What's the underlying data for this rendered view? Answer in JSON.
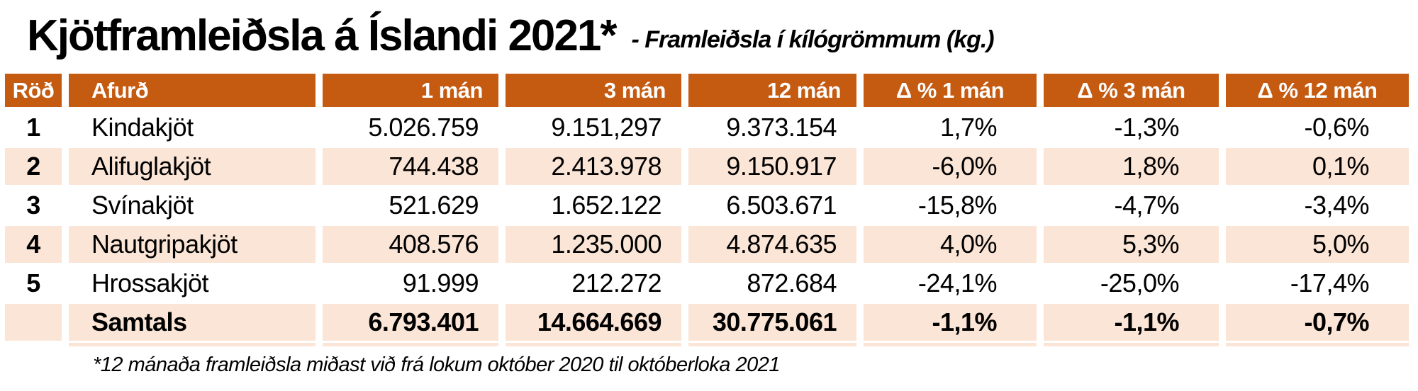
{
  "title": "Kjötframleiðsla á Íslandi 2021*",
  "subtitle": "- Framleiðsla í kílógrömmum (kg.)",
  "footnote": "*12 mánaða framleiðsla miðast við frá lokum október 2020 til októberloka 2021",
  "colors": {
    "header_bg": "#C55A11",
    "band_bg": "#FBE5D6",
    "header_text": "#FFFFFF",
    "body_text": "#000000"
  },
  "chart_data": {
    "type": "table",
    "title": "Kjötframleiðsla á Íslandi 2021*",
    "subtitle": "- Framleiðsla í kílógrömmum (kg.)",
    "columns": [
      "Röð",
      "Afurð",
      "1 mán",
      "3 mán",
      "12 mán",
      "Δ % 1 mán",
      "Δ % 3 mán",
      "Δ % 12 mán"
    ],
    "rows": [
      [
        "1",
        "Kindakjöt",
        "5.026.759",
        "9.151,297",
        "9.373.154",
        "1,7%",
        "-1,3%",
        "-0,6%"
      ],
      [
        "2",
        "Alifuglakjöt",
        "744.438",
        "2.413.978",
        "9.150.917",
        "-6,0%",
        "1,8%",
        "0,1%"
      ],
      [
        "3",
        "Svínakjöt",
        "521.629",
        "1.652.122",
        "6.503.671",
        "-15,8%",
        "-4,7%",
        "-3,4%"
      ],
      [
        "4",
        "Nautgripakjöt",
        "408.576",
        "1.235.000",
        "4.874.635",
        "4,0%",
        "5,3%",
        "5,0%"
      ],
      [
        "5",
        "Hrossakjöt",
        "91.999",
        "212.272",
        "872.684",
        "-24,1%",
        "-25,0%",
        "-17,4%"
      ]
    ],
    "total_row": [
      "",
      "Samtals",
      "6.793.401",
      "14.664.669",
      "30.775.061",
      "-1,1%",
      "-1,1%",
      "-0,7%"
    ],
    "footnote": "*12 mánaða framleiðsla miðast við frá lokum október 2020 til októberloka 2021",
    "layout": {
      "banded_rows": true,
      "header_style": "orange",
      "unit": "kg"
    }
  }
}
